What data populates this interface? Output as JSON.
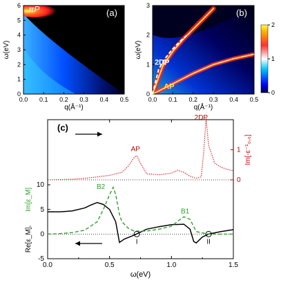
{
  "figure": {
    "panel_a": {
      "label": "(a)",
      "annotation": "πP",
      "xlabel": "q(Å⁻¹)",
      "ylabel": "ω(eV)",
      "xticks": [
        "0.0",
        "0.1",
        "0.2",
        "0.3",
        "0.4",
        "0.5"
      ],
      "yticks": [
        "0",
        "1",
        "2",
        "3",
        "4",
        "5",
        "6"
      ]
    },
    "panel_b": {
      "label": "(b)",
      "xlabel": "q(Å⁻¹)",
      "ylabel": "ω(eV)",
      "xticks": [
        "0.0",
        "0.1",
        "0.2",
        "0.3",
        "0.4",
        "0.5"
      ],
      "yticks": [
        "0",
        "1",
        "2",
        "3"
      ],
      "annotation_2dp": "2DP",
      "annotation_ap": "AP",
      "colorbar_ticks": [
        "0",
        "1",
        "2"
      ]
    },
    "panel_c": {
      "label": "(c)",
      "xlabel": "ω(eV)",
      "ylabel_right": "Im[-ε⁻¹₀,₀]",
      "ylabel_green": "Im[ε_M]",
      "ylabel_black": "Re[ε_M],",
      "peak_ap": "AP",
      "peak_2dp": "2DP",
      "peak_b2": "B2",
      "peak_b1": "B1",
      "zero_i": "I",
      "zero_ii": "II",
      "xticks": [
        "0.0",
        "0.5",
        "1.0",
        "1.5"
      ],
      "yticks_left": [
        "10",
        "5",
        "0",
        "-5"
      ],
      "yticks_right": [
        "0",
        "1"
      ]
    }
  },
  "chart_data": [
    {
      "type": "heatmap",
      "panel": "(a)",
      "xlabel": "q(Å⁻¹)",
      "ylabel": "ω(eV)",
      "xlim": [
        0.0,
        0.5
      ],
      "ylim": [
        0,
        6
      ],
      "annotations": [
        "πP"
      ],
      "colormap": "jet",
      "features": [
        {
          "name": "πP",
          "description_points_q": [
            0.0,
            0.05,
            0.1,
            0.15
          ],
          "omega_eV": [
            5.7,
            5.9,
            6.0,
            6.0
          ]
        }
      ]
    },
    {
      "type": "heatmap",
      "panel": "(b)",
      "xlabel": "q(Å⁻¹)",
      "ylabel": "ω(eV)",
      "xlim": [
        0.0,
        0.5
      ],
      "ylim": [
        0,
        3
      ],
      "colorbar": {
        "min": 0,
        "max": 2,
        "ticks": [
          0,
          1,
          2
        ]
      },
      "colormap": "jet",
      "series": [
        {
          "name": "2DP",
          "q": [
            0.0,
            0.05,
            0.1,
            0.15,
            0.2,
            0.25,
            0.3
          ],
          "omega_eV": [
            0.0,
            0.95,
            1.45,
            1.85,
            2.2,
            2.55,
            2.9
          ]
        },
        {
          "name": "AP",
          "q": [
            0.0,
            0.1,
            0.2,
            0.3,
            0.4,
            0.5
          ],
          "omega_eV": [
            0.0,
            0.35,
            0.7,
            1.0,
            1.2,
            1.35
          ]
        }
      ]
    },
    {
      "type": "line",
      "panel": "(c) top",
      "xlabel": "ω(eV)",
      "ylabel": "Im[-ε⁻¹₀,₀]",
      "xlim": [
        0.0,
        1.5
      ],
      "ylim": [
        0,
        2
      ],
      "series": [
        {
          "name": "Im[-ε⁻¹₀,₀]",
          "color": "#d62728",
          "x": [
            0.0,
            0.1,
            0.2,
            0.3,
            0.4,
            0.5,
            0.6,
            0.65,
            0.7,
            0.72,
            0.75,
            0.8,
            0.9,
            1.0,
            1.05,
            1.1,
            1.15,
            1.2,
            1.24,
            1.26,
            1.28,
            1.3,
            1.35,
            1.4,
            1.45,
            1.5
          ],
          "y": [
            0.0,
            0.01,
            0.02,
            0.05,
            0.1,
            0.15,
            0.25,
            0.45,
            0.75,
            0.8,
            0.55,
            0.2,
            0.17,
            0.22,
            0.32,
            0.25,
            0.12,
            0.05,
            0.1,
            0.9,
            2.2,
            1.15,
            0.55,
            0.42,
            0.35,
            0.3
          ]
        }
      ]
    },
    {
      "type": "line",
      "panel": "(c) bottom",
      "xlabel": "ω(eV)",
      "ylabel": "Re[ε_M], Im[ε_M]",
      "xlim": [
        0.0,
        1.5
      ],
      "ylim": [
        -5,
        11
      ],
      "series": [
        {
          "name": "Re[ε_M]",
          "color": "#000000",
          "x": [
            0.0,
            0.1,
            0.2,
            0.3,
            0.35,
            0.4,
            0.45,
            0.5,
            0.55,
            0.58,
            0.62,
            0.7,
            0.8,
            0.9,
            1.0,
            1.1,
            1.15,
            1.18,
            1.2,
            1.25,
            1.3,
            1.4,
            1.5
          ],
          "y": [
            4.5,
            4.5,
            4.7,
            5.3,
            5.9,
            6.4,
            6.0,
            5.0,
            2.5,
            -1.7,
            -1.0,
            -0.2,
            1.0,
            1.5,
            1.9,
            2.0,
            1.0,
            -1.5,
            -1.8,
            -0.6,
            0.0,
            0.5,
            0.9
          ]
        },
        {
          "name": "Im[ε_M]",
          "color": "#2ca02c",
          "x": [
            0.0,
            0.1,
            0.2,
            0.3,
            0.4,
            0.45,
            0.5,
            0.53,
            0.55,
            0.58,
            0.6,
            0.65,
            0.7,
            0.8,
            0.9,
            1.0,
            1.05,
            1.1,
            1.15,
            1.2,
            1.3,
            1.4,
            1.5
          ],
          "y": [
            0.0,
            0.1,
            0.3,
            0.8,
            2.5,
            5.0,
            8.0,
            9.5,
            8.0,
            4.0,
            2.5,
            1.2,
            0.6,
            0.6,
            1.0,
            1.6,
            2.6,
            3.5,
            3.0,
            0.5,
            0.0,
            0.0,
            0.0
          ]
        }
      ]
    }
  ]
}
